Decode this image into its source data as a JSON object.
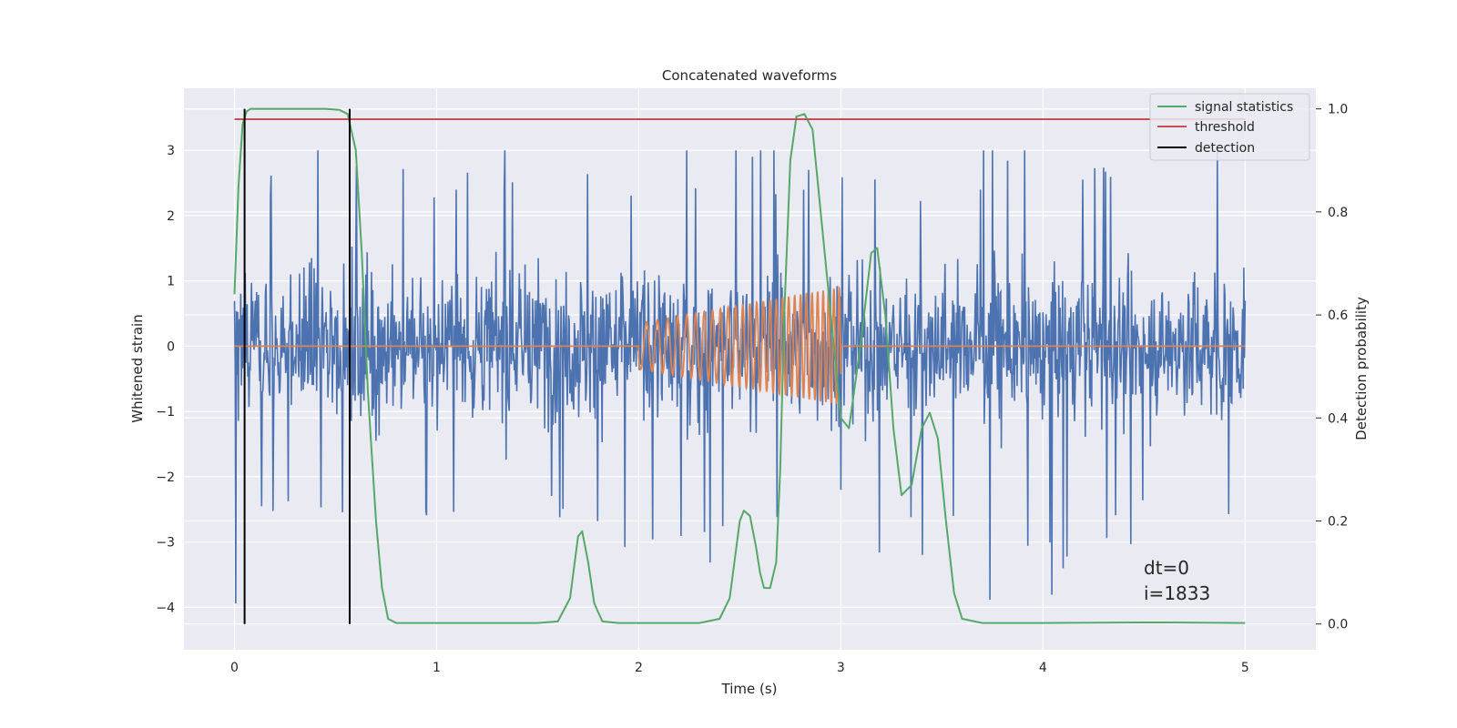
{
  "chart_data": {
    "type": "line",
    "title": "Concatenated waveforms",
    "xlabel": "Time (s)",
    "ylabel": "Whitened strain",
    "y2label": "Detection probability",
    "xlim": [
      -0.25,
      5.35
    ],
    "ylim": [
      -4.65,
      3.95
    ],
    "y2lim": [
      -0.05,
      1.04
    ],
    "x_ticks": [
      0,
      1,
      2,
      3,
      4,
      5
    ],
    "y_ticks": [
      -4,
      -3,
      -2,
      -1,
      0,
      1,
      2,
      3
    ],
    "y2_ticks": [
      0.0,
      0.2,
      0.4,
      0.6,
      0.8,
      1.0
    ],
    "x_tick_labels": [
      "0",
      "1",
      "2",
      "3",
      "4",
      "5"
    ],
    "y_tick_labels": [
      "−4",
      "−3",
      "−2",
      "−1",
      "0",
      "1",
      "2",
      "3"
    ],
    "y2_tick_labels": [
      "0.0",
      "0.2",
      "0.4",
      "0.6",
      "0.8",
      "1.0"
    ],
    "grid": true,
    "legend_position": "top-right",
    "legend": [
      "signal statistics",
      "threshold",
      "detection"
    ],
    "noise": {
      "x_range": [
        0,
        5
      ],
      "typical_range": [
        -1.6,
        1.9
      ],
      "extreme_range": [
        -4.3,
        3.0
      ],
      "color": "#4c72b0"
    },
    "injected_signal": {
      "x_range": [
        2,
        3
      ],
      "start_amplitude": 0.35,
      "end_amplitude": 0.9,
      "color": "#dd8452"
    },
    "series": [
      {
        "name": "signal statistics",
        "axis": "right",
        "color": "#55a868",
        "x": [
          0,
          0.02,
          0.04,
          0.06,
          0.08,
          0.1,
          0.15,
          0.3,
          0.45,
          0.52,
          0.56,
          0.6,
          0.63,
          0.66,
          0.7,
          0.73,
          0.76,
          0.8,
          1.0,
          1.5,
          1.6,
          1.66,
          1.7,
          1.72,
          1.75,
          1.78,
          1.82,
          1.9,
          2.0,
          2.3,
          2.4,
          2.45,
          2.5,
          2.52,
          2.55,
          2.58,
          2.6,
          2.62,
          2.65,
          2.68,
          2.7,
          2.72,
          2.75,
          2.78,
          2.82,
          2.86,
          2.9,
          2.95,
          3.0,
          3.04,
          3.1,
          3.15,
          3.18,
          3.22,
          3.26,
          3.3,
          3.35,
          3.4,
          3.44,
          3.48,
          3.52,
          3.56,
          3.6,
          3.7,
          4.0,
          4.5,
          4.6,
          5.0
        ],
        "y": [
          0.64,
          0.85,
          0.97,
          0.995,
          1.0,
          1.0,
          1.0,
          1.0,
          1.0,
          0.998,
          0.99,
          0.92,
          0.72,
          0.45,
          0.2,
          0.07,
          0.01,
          0.002,
          0.002,
          0.002,
          0.005,
          0.05,
          0.17,
          0.18,
          0.12,
          0.04,
          0.005,
          0.002,
          0.002,
          0.002,
          0.01,
          0.05,
          0.2,
          0.22,
          0.21,
          0.15,
          0.1,
          0.07,
          0.07,
          0.12,
          0.3,
          0.6,
          0.9,
          0.985,
          0.99,
          0.96,
          0.8,
          0.6,
          0.4,
          0.38,
          0.55,
          0.72,
          0.73,
          0.6,
          0.38,
          0.25,
          0.27,
          0.38,
          0.41,
          0.36,
          0.2,
          0.06,
          0.01,
          0.002,
          0.002,
          0.003,
          0.003,
          0.002
        ]
      },
      {
        "name": "threshold",
        "axis": "right",
        "color": "#c44e52",
        "x": [
          0,
          5
        ],
        "y": [
          0.98,
          0.98
        ]
      },
      {
        "name": "detection",
        "axis": "right",
        "color": "#000000",
        "x_events": [
          0.05,
          0.57
        ],
        "y_range": [
          0.0,
          1.0
        ]
      }
    ],
    "annotations": [
      "dt=0",
      "i=1833"
    ]
  }
}
